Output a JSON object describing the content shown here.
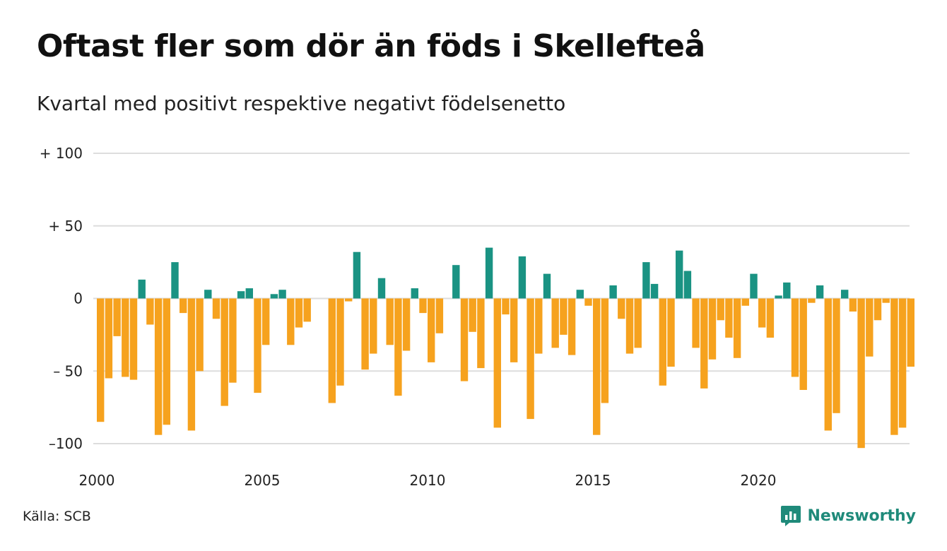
{
  "header": {
    "title": "Oftast fler som dör än föds i Skellefteå",
    "subtitle": "Kvartal med positivt respektive negativt födelsenetto"
  },
  "footer": {
    "source": "Källa: SCB",
    "brand": "Newsworthy"
  },
  "colors": {
    "positive": "#1a9383",
    "negative": "#f6a21e",
    "grid": "#dddddd",
    "text": "#111111",
    "brand": "#1f8a7a"
  },
  "chart_data": {
    "type": "bar",
    "title": "Oftast fler som dör än föds i Skellefteå",
    "subtitle": "Kvartal med positivt respektive negativt födelsenetto",
    "ylim": [
      -100,
      100
    ],
    "ytick_values": [
      100,
      50,
      0,
      -50,
      -100
    ],
    "ytick_labels": [
      "+ 100",
      "+  50",
      "0",
      "– 50",
      "–100"
    ],
    "xtick_values": [
      2000,
      2005,
      2010,
      2015,
      2020
    ],
    "xtick_labels": [
      "2000",
      "2005",
      "2010",
      "2015",
      "2020"
    ],
    "x_start_year": 2000,
    "periods_per_year": 4,
    "grid": true,
    "legend": "none",
    "values": [
      -85,
      -55,
      -26,
      -54,
      -56,
      13,
      -18,
      -94,
      -87,
      25,
      -10,
      -91,
      -50,
      6,
      -14,
      -74,
      -58,
      5,
      7,
      -65,
      -32,
      3,
      6,
      -32,
      -20,
      -16,
      0,
      0,
      -72,
      -60,
      -2,
      32,
      -49,
      -38,
      14,
      -32,
      -67,
      -36,
      7,
      -10,
      -44,
      -24,
      0,
      23,
      -57,
      -23,
      -48,
      35,
      -89,
      -11,
      -44,
      29,
      -83,
      -38,
      17,
      -34,
      -25,
      -39,
      6,
      -5,
      -94,
      -72,
      9,
      -14,
      -38,
      -34,
      25,
      10,
      -60,
      -47,
      33,
      19,
      -34,
      -62,
      -42,
      -15,
      -27,
      -41,
      -5,
      17,
      -20,
      -27,
      2,
      11,
      -54,
      -63,
      -3,
      9,
      -91,
      -79,
      6,
      -9,
      -103,
      -40,
      -15,
      -3,
      -94,
      -89,
      -47
    ]
  }
}
